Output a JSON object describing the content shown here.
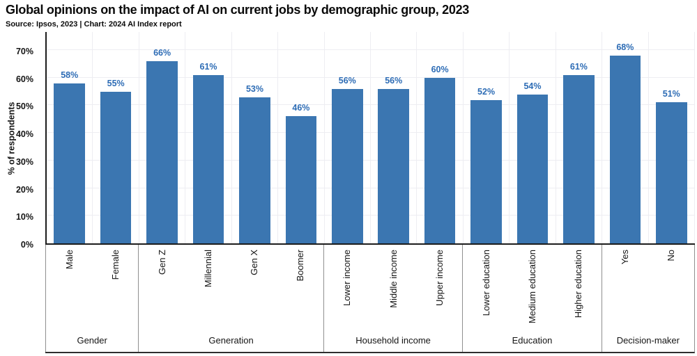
{
  "header": {
    "title": "Global opinions on the impact of AI on current jobs by demographic group, 2023",
    "subtitle": "Source: Ipsos, 2023 | Chart: 2024 AI Index report"
  },
  "chart_data": {
    "type": "bar",
    "title": "Global opinions on the impact of AI on current jobs by demographic group, 2023",
    "xlabel": "",
    "ylabel": "% of respondents",
    "ylim": [
      0,
      70
    ],
    "yticks": [
      "0%",
      "10%",
      "20%",
      "30%",
      "40%",
      "50%",
      "60%",
      "70%"
    ],
    "grid": true,
    "legend": "none",
    "bar_color": "#3b76b1",
    "value_label_color": "#2d6cb5",
    "groups": [
      {
        "label": "Gender",
        "categories": [
          "Male",
          "Female"
        ],
        "values": [
          58,
          55
        ],
        "value_labels": [
          "58%",
          "55%"
        ]
      },
      {
        "label": "Generation",
        "categories": [
          "Gen Z",
          "Millennial",
          "Gen X",
          "Boomer"
        ],
        "values": [
          66,
          61,
          53,
          46
        ],
        "value_labels": [
          "66%",
          "61%",
          "53%",
          "46%"
        ]
      },
      {
        "label": "Household income",
        "categories": [
          "Lower income",
          "Middle income",
          "Upper income"
        ],
        "values": [
          56,
          56,
          60
        ],
        "value_labels": [
          "56%",
          "56%",
          "60%"
        ]
      },
      {
        "label": "Education",
        "categories": [
          "Lower education",
          "Medium education",
          "Higher education"
        ],
        "values": [
          52,
          54,
          61
        ],
        "value_labels": [
          "52%",
          "54%",
          "61%"
        ]
      },
      {
        "label": "Decision-maker",
        "categories": [
          "Yes",
          "No"
        ],
        "values": [
          68,
          51
        ],
        "value_labels": [
          "68%",
          "51%"
        ]
      }
    ]
  }
}
